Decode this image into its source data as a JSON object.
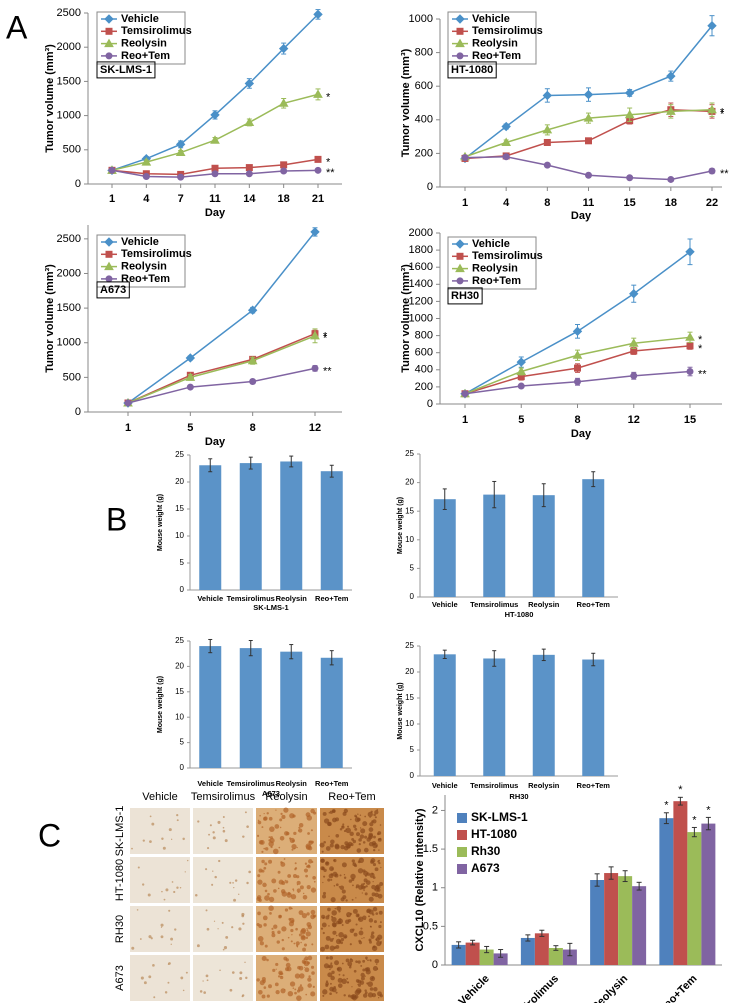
{
  "panel_labels": [
    "A",
    "B",
    "C"
  ],
  "ihc": {
    "columns": [
      "Vehicle",
      "Temsirolimus",
      "Reolysin",
      "Reo+Tem"
    ],
    "rows": [
      "SK-LMS-1",
      "HT-1080",
      "RH30",
      "A673"
    ]
  },
  "chart_data": [
    {
      "type": "line",
      "annotation": "SK-LMS-1",
      "xlabel": "Day",
      "ylabel": "Tumor volume (mm³)",
      "categories": [
        "1",
        "4",
        "7",
        "11",
        "14",
        "18",
        "21"
      ],
      "ylim": [
        0,
        2500
      ],
      "yticks": [
        0,
        500,
        1000,
        1500,
        2000,
        2500
      ],
      "series": [
        {
          "name": "Vehicle",
          "color": "#4a90c8",
          "values": [
            200,
            370,
            580,
            1010,
            1470,
            1980,
            2480
          ],
          "errors": [
            20,
            30,
            50,
            60,
            70,
            80,
            70
          ]
        },
        {
          "name": "Temsirolimus",
          "color": "#c0504d",
          "values": [
            200,
            150,
            140,
            230,
            240,
            280,
            360
          ],
          "errors": [
            20,
            20,
            20,
            30,
            20,
            30,
            30
          ],
          "significance": "*"
        },
        {
          "name": "Reolysin",
          "color": "#9bbb59",
          "values": [
            200,
            320,
            460,
            640,
            900,
            1180,
            1310
          ],
          "errors": [
            20,
            30,
            30,
            40,
            50,
            70,
            80
          ],
          "significance": "*"
        },
        {
          "name": "Reo+Tem",
          "color": "#8064a2",
          "values": [
            200,
            110,
            100,
            150,
            150,
            190,
            200
          ],
          "errors": [
            20,
            20,
            20,
            20,
            20,
            20,
            20
          ],
          "significance": "**"
        }
      ]
    },
    {
      "type": "line",
      "annotation": "HT-1080",
      "xlabel": "Day",
      "ylabel": "Tumor volume (mm³)",
      "categories": [
        "1",
        "4",
        "8",
        "11",
        "15",
        "18",
        "22"
      ],
      "ylim": [
        0,
        1000
      ],
      "yticks": [
        0,
        200,
        400,
        600,
        800,
        1000
      ],
      "series": [
        {
          "name": "Vehicle",
          "color": "#4a90c8",
          "values": [
            170,
            360,
            545,
            550,
            560,
            660,
            960
          ],
          "errors": [
            10,
            15,
            40,
            40,
            20,
            30,
            60
          ]
        },
        {
          "name": "Temsirolimus",
          "color": "#c0504d",
          "values": [
            170,
            185,
            265,
            275,
            395,
            460,
            450
          ],
          "errors": [
            10,
            10,
            15,
            15,
            20,
            40,
            40
          ],
          "significance": "*"
        },
        {
          "name": "Reolysin",
          "color": "#9bbb59",
          "values": [
            180,
            265,
            340,
            410,
            430,
            450,
            460
          ],
          "errors": [
            10,
            15,
            30,
            30,
            40,
            40,
            40
          ],
          "significance": "*"
        },
        {
          "name": "Reo+Tem",
          "color": "#8064a2",
          "values": [
            175,
            180,
            130,
            70,
            55,
            45,
            95
          ],
          "errors": [
            10,
            10,
            10,
            5,
            5,
            5,
            15
          ],
          "significance": "**"
        }
      ]
    },
    {
      "type": "line",
      "annotation": "A673",
      "xlabel": "Day",
      "ylabel": "Tumor volume (mm³)",
      "categories": [
        "1",
        "5",
        "8",
        "12"
      ],
      "ylim": [
        0,
        2700
      ],
      "yticks": [
        0,
        500,
        1000,
        1500,
        2000,
        2500
      ],
      "series": [
        {
          "name": "Vehicle",
          "color": "#4a90c8",
          "values": [
            130,
            780,
            1470,
            2600
          ],
          "errors": [
            20,
            30,
            40,
            60
          ]
        },
        {
          "name": "Temsirolimus",
          "color": "#c0504d",
          "values": [
            130,
            530,
            760,
            1130
          ],
          "errors": [
            20,
            40,
            40,
            50
          ],
          "significance": "*"
        },
        {
          "name": "Reolysin",
          "color": "#9bbb59",
          "values": [
            130,
            500,
            740,
            1100
          ],
          "errors": [
            20,
            40,
            50,
            100
          ],
          "significance": "*"
        },
        {
          "name": "Reo+Tem",
          "color": "#8064a2",
          "values": [
            130,
            360,
            440,
            630
          ],
          "errors": [
            20,
            20,
            30,
            40
          ],
          "significance": "**"
        }
      ]
    },
    {
      "type": "line",
      "annotation": "RH30",
      "xlabel": "Day",
      "ylabel": "Tumor volume (mm³)",
      "categories": [
        "1",
        "5",
        "8",
        "12",
        "15"
      ],
      "ylim": [
        0,
        2000
      ],
      "yticks": [
        0,
        200,
        400,
        600,
        800,
        1000,
        1200,
        1400,
        1600,
        1800,
        2000
      ],
      "series": [
        {
          "name": "Vehicle",
          "color": "#4a90c8",
          "values": [
            120,
            490,
            850,
            1290,
            1780
          ],
          "errors": [
            10,
            60,
            80,
            100,
            150
          ]
        },
        {
          "name": "Temsirolimus",
          "color": "#c0504d",
          "values": [
            120,
            320,
            420,
            620,
            680
          ],
          "errors": [
            10,
            40,
            50,
            40,
            40
          ],
          "significance": "*"
        },
        {
          "name": "Reolysin",
          "color": "#9bbb59",
          "values": [
            120,
            380,
            570,
            710,
            780
          ],
          "errors": [
            10,
            40,
            60,
            60,
            60
          ],
          "significance": "*"
        },
        {
          "name": "Reo+Tem",
          "color": "#8064a2",
          "values": [
            120,
            210,
            260,
            330,
            380
          ],
          "errors": [
            10,
            20,
            40,
            40,
            50
          ],
          "significance": "**"
        }
      ]
    },
    {
      "type": "bar",
      "xlabel": "SK-LMS-1",
      "ylabel": "Mouse weight (g)",
      "color": "#5b93c8",
      "categories": [
        "Vehicle",
        "Temsirolimus",
        "Reolysin",
        "Reo+Tem"
      ],
      "values": [
        23.1,
        23.5,
        23.8,
        22.0
      ],
      "errors": [
        1.2,
        1.1,
        1.0,
        1.1
      ],
      "ylim": [
        0,
        25
      ],
      "yticks": [
        0,
        5,
        10,
        15,
        20,
        25
      ]
    },
    {
      "type": "bar",
      "xlabel": "HT-1080",
      "ylabel": "Mouse weight (g)",
      "color": "#5b93c8",
      "categories": [
        "Vehicle",
        "Temsirolimus",
        "Reolysin",
        "Reo+Tem"
      ],
      "values": [
        17.1,
        17.9,
        17.8,
        20.6
      ],
      "errors": [
        1.8,
        2.3,
        2.0,
        1.3
      ],
      "ylim": [
        0,
        25
      ],
      "yticks": [
        0,
        5,
        10,
        15,
        20,
        25
      ]
    },
    {
      "type": "bar",
      "xlabel": "A673",
      "ylabel": "Mouse weight (g)",
      "color": "#5b93c8",
      "categories": [
        "Vehicle",
        "Temsirolimus",
        "Reolysin",
        "Reo+Tem"
      ],
      "values": [
        24.0,
        23.6,
        22.9,
        21.7
      ],
      "errors": [
        1.3,
        1.5,
        1.4,
        1.4
      ],
      "ylim": [
        0,
        25
      ],
      "yticks": [
        0,
        5,
        10,
        15,
        20,
        25
      ]
    },
    {
      "type": "bar",
      "xlabel": "RH30",
      "ylabel": "Mouse weight (g)",
      "color": "#5b93c8",
      "categories": [
        "Vehicle",
        "Temsirolimus",
        "Reolysin",
        "Reo+Tem"
      ],
      "values": [
        23.4,
        22.6,
        23.3,
        22.4
      ],
      "errors": [
        0.8,
        1.5,
        1.1,
        1.2
      ],
      "ylim": [
        0,
        25
      ],
      "yticks": [
        0,
        5,
        10,
        15,
        20,
        25
      ]
    },
    {
      "type": "grouped-bar",
      "ylabel": "CXCL10 (Relative intensity)",
      "categories": [
        "Vehicle",
        "Temsirolimus",
        "Reolysin",
        "Reo+Tem"
      ],
      "ylim": [
        0,
        2.2
      ],
      "yticks": [
        0,
        0.5,
        1,
        1.5,
        2
      ],
      "series": [
        {
          "name": "SK-LMS-1",
          "color": "#4f81bd",
          "values": [
            0.26,
            0.35,
            1.1,
            1.9
          ],
          "errors": [
            0.04,
            0.04,
            0.08,
            0.07
          ],
          "significance": [
            null,
            null,
            null,
            "*"
          ]
        },
        {
          "name": "HT-1080",
          "color": "#c0504d",
          "values": [
            0.29,
            0.41,
            1.19,
            2.12
          ],
          "errors": [
            0.03,
            0.04,
            0.08,
            0.05
          ],
          "significance": [
            null,
            null,
            null,
            "*"
          ]
        },
        {
          "name": "Rh30",
          "color": "#9bbb59",
          "values": [
            0.2,
            0.22,
            1.15,
            1.72
          ],
          "errors": [
            0.04,
            0.03,
            0.07,
            0.06
          ],
          "significance": [
            null,
            null,
            null,
            "*"
          ]
        },
        {
          "name": "A673",
          "color": "#8064a2",
          "values": [
            0.15,
            0.2,
            1.02,
            1.83
          ],
          "errors": [
            0.05,
            0.08,
            0.05,
            0.08
          ],
          "significance": [
            null,
            null,
            null,
            "*"
          ]
        }
      ]
    }
  ]
}
